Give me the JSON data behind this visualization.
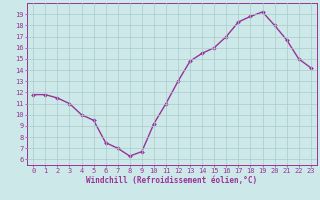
{
  "x": [
    0,
    1,
    2,
    3,
    4,
    5,
    6,
    7,
    8,
    9,
    10,
    11,
    12,
    13,
    14,
    15,
    16,
    17,
    18,
    19,
    20,
    21,
    22,
    23
  ],
  "y": [
    11.8,
    11.8,
    11.5,
    11.0,
    10.0,
    9.5,
    7.5,
    7.0,
    6.3,
    6.7,
    9.2,
    11.0,
    13.0,
    14.8,
    15.5,
    16.0,
    17.0,
    18.3,
    18.8,
    19.2,
    18.0,
    16.7,
    15.0,
    14.2
  ],
  "line_color": "#993399",
  "marker": "D",
  "marker_size": 2,
  "marker_color": "#993399",
  "bg_color": "#cce8e8",
  "grid_color": "#aacccc",
  "xlabel": "Windchill (Refroidissement éolien,°C)",
  "xlabel_color": "#993399",
  "tick_color": "#993399",
  "ylim": [
    5.5,
    20.0
  ],
  "yticks": [
    6,
    7,
    8,
    9,
    10,
    11,
    12,
    13,
    14,
    15,
    16,
    17,
    18,
    19
  ],
  "xticks": [
    0,
    1,
    2,
    3,
    4,
    5,
    6,
    7,
    8,
    9,
    10,
    11,
    12,
    13,
    14,
    15,
    16,
    17,
    18,
    19,
    20,
    21,
    22,
    23
  ],
  "axis_color": "#993399",
  "linewidth": 1.0,
  "tick_fontsize": 5.0,
  "xlabel_fontsize": 5.5
}
